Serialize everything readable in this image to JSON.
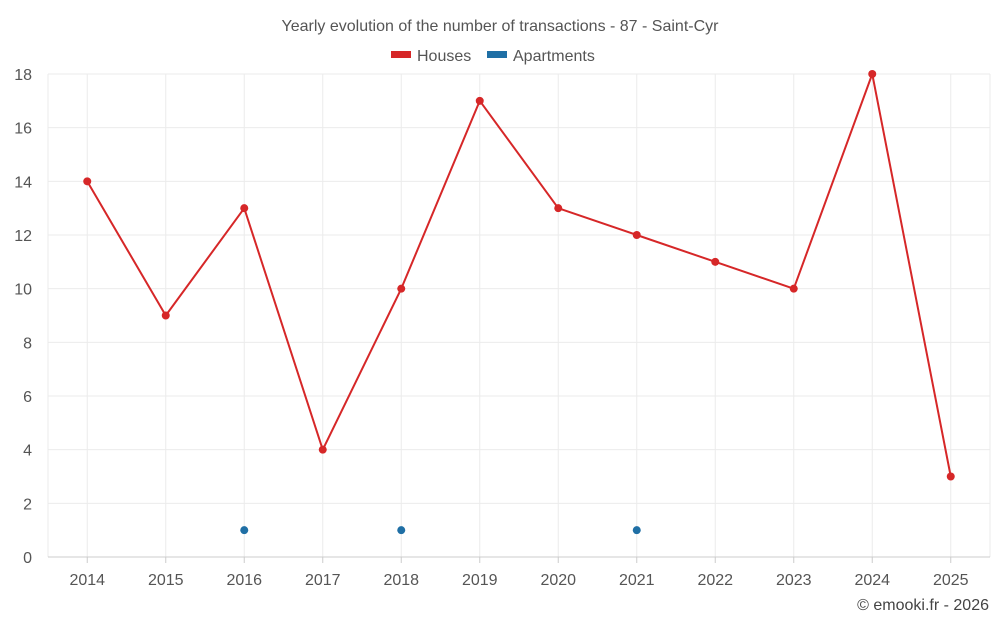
{
  "chart_data": {
    "type": "line",
    "title": "Yearly evolution of the number of transactions - 87 - Saint-Cyr",
    "categories": [
      "2014",
      "2015",
      "2016",
      "2017",
      "2018",
      "2019",
      "2020",
      "2021",
      "2022",
      "2023",
      "2024",
      "2025"
    ],
    "series": [
      {
        "name": "Houses",
        "color": "#d62728",
        "values": [
          14,
          9,
          13,
          4,
          10,
          17,
          13,
          12,
          11,
          10,
          18,
          3
        ]
      },
      {
        "name": "Apartments",
        "color": "#1f6fa5",
        "values": [
          null,
          null,
          1,
          null,
          1,
          null,
          null,
          1,
          null,
          null,
          null,
          null
        ]
      }
    ],
    "ylim": [
      0,
      18
    ],
    "yticks": [
      0,
      2,
      4,
      6,
      8,
      10,
      12,
      14,
      16,
      18
    ],
    "xlabel": "",
    "ylabel": "",
    "grid": true,
    "legend_position": "top-center"
  },
  "credit": "© emooki.fr - 2026"
}
